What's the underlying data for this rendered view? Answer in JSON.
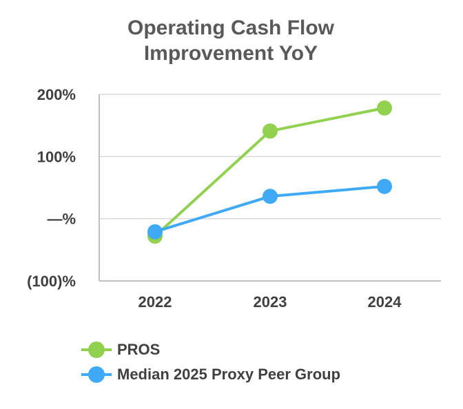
{
  "chart_data": {
    "type": "line",
    "title": [
      "Operating Cash Flow",
      "Improvement YoY"
    ],
    "categories": [
      "2022",
      "2023",
      "2024"
    ],
    "y_tick_labels": [
      "(100)%",
      "—%",
      "100%",
      "200%"
    ],
    "y_tick_values": [
      -100,
      0,
      100,
      200
    ],
    "ylim": [
      -100,
      200
    ],
    "grid": "horizontal",
    "legend_position": "bottom-left",
    "series": [
      {
        "name": "PROS",
        "values": [
          -28,
          141,
          178
        ],
        "color": "#92D050"
      },
      {
        "name": "Median 2025 Proxy Peer Group",
        "values": [
          -21,
          36,
          52
        ],
        "color": "#3FA9F5"
      }
    ]
  }
}
